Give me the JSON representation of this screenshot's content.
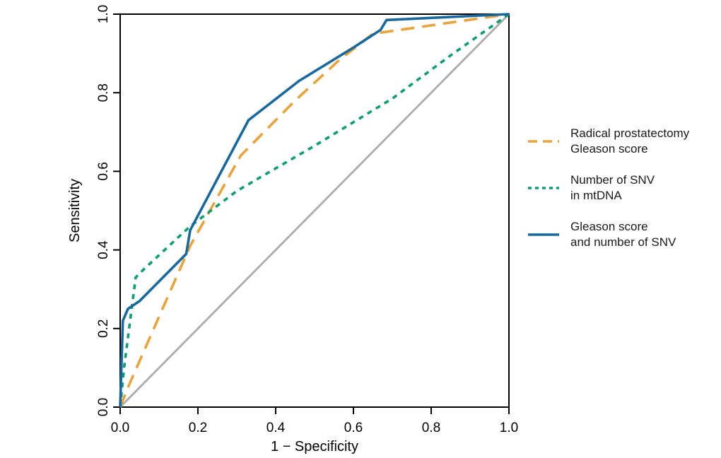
{
  "chart_data": {
    "type": "line",
    "title": "",
    "xlabel": "1 − Specificity",
    "ylabel": "Sensitivity",
    "xlim": [
      0,
      1
    ],
    "ylim": [
      0,
      1
    ],
    "grid": false,
    "legend_position": "right",
    "xticks": [
      0.0,
      0.2,
      0.4,
      0.6,
      0.8,
      1.0
    ],
    "yticks": [
      0.0,
      0.2,
      0.4,
      0.6,
      0.8,
      1.0
    ],
    "xtick_labels": [
      "0.0",
      "0.2",
      "0.4",
      "0.6",
      "0.8",
      "1.0"
    ],
    "ytick_labels": [
      "0.0",
      "0.2",
      "0.4",
      "0.6",
      "0.8",
      "1.0"
    ],
    "axis_color": "#000000",
    "series": [
      {
        "name": "Radical prostatectomy Gleason score",
        "label_lines": [
          "Radical prostatectomy",
          "Gleason score"
        ],
        "color": "#E8A33B",
        "dash": "long-dash",
        "points": [
          [
            0,
            0
          ],
          [
            0.02,
            0.05
          ],
          [
            0.18,
            0.41
          ],
          [
            0.31,
            0.64
          ],
          [
            0.45,
            0.78
          ],
          [
            0.56,
            0.88
          ],
          [
            0.65,
            0.95
          ],
          [
            1,
            1
          ]
        ]
      },
      {
        "name": "Number of SNV in mtDNA",
        "label_lines": [
          "Number of SNV",
          "in mtDNA"
        ],
        "color": "#0D9E6E",
        "dash": "short-dash",
        "points": [
          [
            0,
            0
          ],
          [
            0.01,
            0.1
          ],
          [
            0.04,
            0.33
          ],
          [
            0.06,
            0.35
          ],
          [
            0.18,
            0.46
          ],
          [
            0.3,
            0.55
          ],
          [
            0.5,
            0.665
          ],
          [
            0.7,
            0.785
          ],
          [
            0.85,
            0.895
          ],
          [
            1,
            1
          ]
        ]
      },
      {
        "name": "Gleason score and number of SNV",
        "label_lines": [
          "Gleason score",
          "and number of SNV"
        ],
        "color": "#17689F",
        "dash": "solid",
        "points": [
          [
            0,
            0
          ],
          [
            0.007,
            0.22
          ],
          [
            0.02,
            0.25
          ],
          [
            0.05,
            0.27
          ],
          [
            0.17,
            0.39
          ],
          [
            0.18,
            0.45
          ],
          [
            0.33,
            0.73
          ],
          [
            0.46,
            0.83
          ],
          [
            0.6,
            0.915
          ],
          [
            0.67,
            0.96
          ],
          [
            0.685,
            0.985
          ],
          [
            1,
            1
          ]
        ]
      }
    ],
    "reference_line": {
      "name": "chance diagonal",
      "color": "#ABABAB",
      "points": [
        [
          0,
          0
        ],
        [
          1,
          1
        ]
      ]
    }
  }
}
